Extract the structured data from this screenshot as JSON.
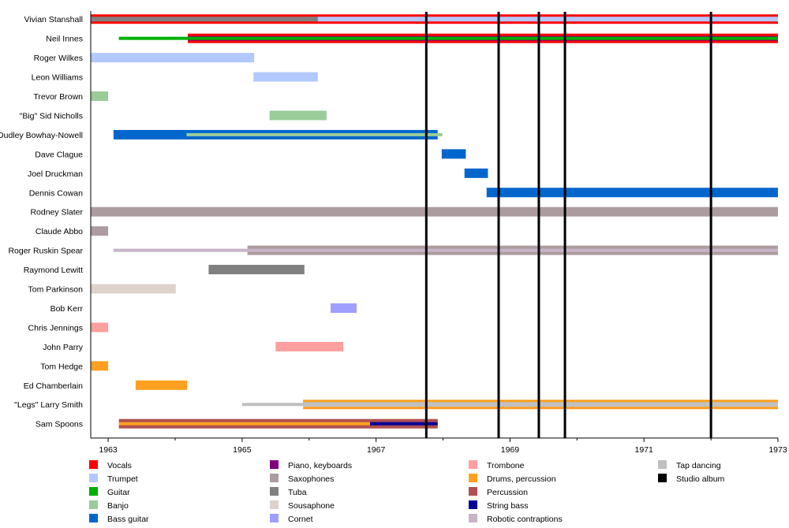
{
  "chart_data": {
    "type": "timeline",
    "xlim": [
      1962.74,
      1973.0
    ],
    "x_ticks": [
      1963,
      1965,
      1967,
      1969,
      1971,
      1973
    ],
    "x_minor_ticks": [
      1964,
      1966,
      1968,
      1970,
      1972
    ],
    "legend_placement": "bottom",
    "instruments": {
      "Vocals": "#ff0000",
      "Trumpet": "#b3c8ff",
      "Guitar": "#00b000",
      "Banjo": "#99cc99",
      "Bass guitar": "#0066cc",
      "Piano, keyboards": "#800080",
      "Saxophones": "#ac9c9f",
      "Tuba": "#808080",
      "Sousaphone": "#ddd3cc",
      "Cornet": "#9f9fff",
      "Trombone": "#ff9f9f",
      "Drums, percussion": "#ffa020",
      "Percussion": "#b05050",
      "String bass": "#000099",
      "Robotic contraptions": "#c8b4c8",
      "Tap dancing": "#c0c0c0",
      "Studio album": "#000000"
    },
    "legend": [
      "Vocals",
      "Trumpet",
      "Guitar",
      "Banjo",
      "Bass guitar",
      "Piano, keyboards",
      "Saxophones",
      "Tuba",
      "Sousaphone",
      "Cornet",
      "Trombone",
      "Drums, percussion",
      "Percussion",
      "String bass",
      "Robotic contraptions",
      "Tap dancing",
      "Studio album"
    ],
    "studio_albums": [
      1967.75,
      1968.83,
      1969.43,
      1969.82,
      1972.0
    ],
    "members": [
      {
        "name": "Vivian Stanshall",
        "bars": [
          {
            "i": "Vocals",
            "s": 1962.74,
            "e": 1973,
            "w": "full"
          },
          {
            "i": "Tuba",
            "s": 1962.74,
            "e": 1966.13,
            "w": "mid"
          },
          {
            "i": "Trumpet",
            "s": 1966.13,
            "e": 1973,
            "w": "mid"
          }
        ]
      },
      {
        "name": "Neil Innes",
        "bars": [
          {
            "i": "Guitar",
            "s": 1963.16,
            "e": 1964.19,
            "w": "thin"
          },
          {
            "i": "Vocals",
            "s": 1964.19,
            "e": 1973,
            "w": "full"
          },
          {
            "i": "Piano, keyboards",
            "s": 1964.19,
            "e": 1973,
            "w": "mid"
          },
          {
            "i": "Guitar",
            "s": 1964.19,
            "e": 1973,
            "w": "thin"
          }
        ]
      },
      {
        "name": "Roger Wilkes",
        "bars": [
          {
            "i": "Trumpet",
            "s": 1962.74,
            "e": 1965.18,
            "w": "full"
          }
        ]
      },
      {
        "name": "Leon Williams",
        "bars": [
          {
            "i": "Trumpet",
            "s": 1965.17,
            "e": 1966.13,
            "w": "full"
          }
        ]
      },
      {
        "name": "Trevor Brown",
        "bars": [
          {
            "i": "Banjo",
            "s": 1962.74,
            "e": 1963.0,
            "w": "full"
          }
        ]
      },
      {
        "name": "\"Big\" Sid Nicholls",
        "bars": [
          {
            "i": "Banjo",
            "s": 1965.41,
            "e": 1966.26,
            "w": "full"
          }
        ]
      },
      {
        "name": "Dudley Bowhay-Nowell",
        "bars": [
          {
            "i": "Bass guitar",
            "s": 1963.08,
            "e": 1967.92,
            "w": "full"
          },
          {
            "i": "Banjo",
            "s": 1964.17,
            "e": 1967.99,
            "w": "thin"
          }
        ]
      },
      {
        "name": "Dave Clague",
        "bars": [
          {
            "i": "Bass guitar",
            "s": 1967.98,
            "e": 1968.34,
            "w": "full"
          }
        ]
      },
      {
        "name": "Joel Druckman",
        "bars": [
          {
            "i": "Bass guitar",
            "s": 1968.32,
            "e": 1968.67,
            "w": "full"
          }
        ]
      },
      {
        "name": "Dennis Cowan",
        "bars": [
          {
            "i": "Bass guitar",
            "s": 1968.65,
            "e": 1973,
            "w": "full"
          }
        ]
      },
      {
        "name": "Rodney Slater",
        "bars": [
          {
            "i": "Saxophones",
            "s": 1962.74,
            "e": 1973,
            "w": "full"
          }
        ]
      },
      {
        "name": "Claude Abbo",
        "bars": [
          {
            "i": "Saxophones",
            "s": 1962.74,
            "e": 1963.0,
            "w": "full"
          }
        ]
      },
      {
        "name": "Roger Ruskin Spear",
        "bars": [
          {
            "i": "Robotic contraptions",
            "s": 1963.08,
            "e": 1965.08,
            "w": "thin"
          },
          {
            "i": "Saxophones",
            "s": 1965.08,
            "e": 1973,
            "w": "full"
          },
          {
            "i": "Robotic contraptions",
            "s": 1965.08,
            "e": 1973,
            "w": "thin"
          }
        ]
      },
      {
        "name": "Raymond Lewitt",
        "bars": [
          {
            "i": "Tuba",
            "s": 1964.5,
            "e": 1965.93,
            "w": "full"
          }
        ]
      },
      {
        "name": "Tom Parkinson",
        "bars": [
          {
            "i": "Sousaphone",
            "s": 1962.74,
            "e": 1964.01,
            "w": "full"
          }
        ]
      },
      {
        "name": "Bob Kerr",
        "bars": [
          {
            "i": "Cornet",
            "s": 1966.32,
            "e": 1966.71,
            "w": "full"
          }
        ]
      },
      {
        "name": "Chris Jennings",
        "bars": [
          {
            "i": "Trombone",
            "s": 1962.74,
            "e": 1963.0,
            "w": "full"
          }
        ]
      },
      {
        "name": "John Parry",
        "bars": [
          {
            "i": "Trombone",
            "s": 1965.5,
            "e": 1966.51,
            "w": "full"
          }
        ]
      },
      {
        "name": "Tom Hedge",
        "bars": [
          {
            "i": "Drums, percussion",
            "s": 1962.74,
            "e": 1963.0,
            "w": "full"
          }
        ]
      },
      {
        "name": "Ed Chamberlain",
        "bars": [
          {
            "i": "Drums, percussion",
            "s": 1963.41,
            "e": 1964.18,
            "w": "full"
          }
        ]
      },
      {
        "name": "\"Legs\" Larry Smith",
        "bars": [
          {
            "i": "Tap dancing",
            "s": 1965.0,
            "e": 1965.91,
            "w": "thin"
          },
          {
            "i": "Drums, percussion",
            "s": 1965.91,
            "e": 1973,
            "w": "full"
          },
          {
            "i": "Tap dancing",
            "s": 1965.91,
            "e": 1973,
            "w": "mid"
          }
        ]
      },
      {
        "name": "Sam Spoons",
        "bars": [
          {
            "i": "Percussion",
            "s": 1963.16,
            "e": 1967.92,
            "w": "full"
          },
          {
            "i": "Drums, percussion",
            "s": 1963.16,
            "e": 1966.91,
            "w": "thin"
          },
          {
            "i": "String bass",
            "s": 1966.91,
            "e": 1967.92,
            "w": "thin"
          }
        ]
      }
    ]
  }
}
